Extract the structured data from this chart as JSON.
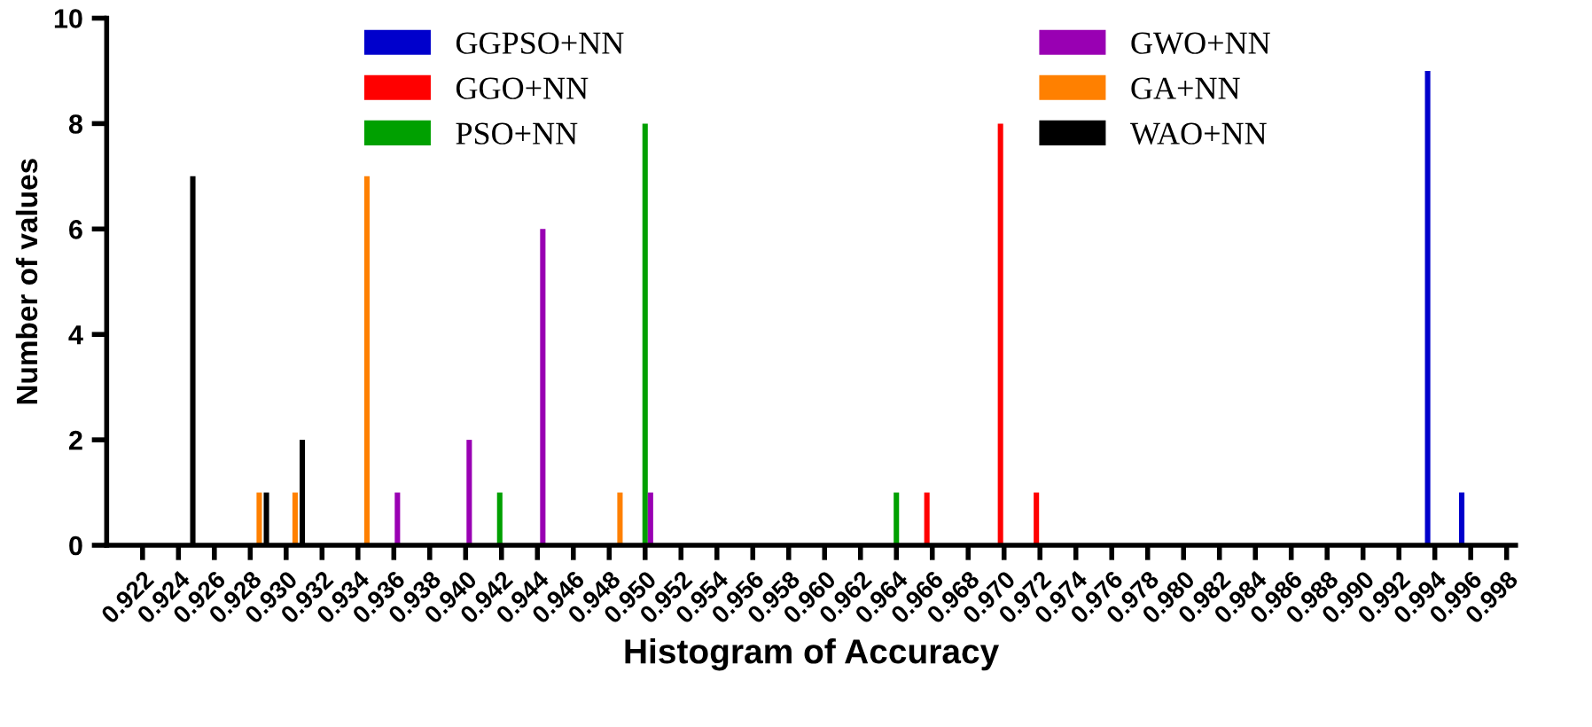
{
  "chart_data": {
    "type": "bar",
    "xlabel": "Histogram of Accuracy",
    "ylabel": "Number of values",
    "xlim": [
      0.92,
      0.9985
    ],
    "xticks": [
      {
        "value": 0.922,
        "label": "0.922"
      },
      {
        "value": 0.924,
        "label": "0.924"
      },
      {
        "value": 0.926,
        "label": "0.926"
      },
      {
        "value": 0.928,
        "label": "0.928"
      },
      {
        "value": 0.93,
        "label": "0.930"
      },
      {
        "value": 0.932,
        "label": "0.932"
      },
      {
        "value": 0.934,
        "label": "0.934"
      },
      {
        "value": 0.936,
        "label": "0.936"
      },
      {
        "value": 0.938,
        "label": "0.938"
      },
      {
        "value": 0.94,
        "label": "0.940"
      },
      {
        "value": 0.942,
        "label": "0.942"
      },
      {
        "value": 0.944,
        "label": "0.944"
      },
      {
        "value": 0.946,
        "label": "0.946"
      },
      {
        "value": 0.948,
        "label": "0.948"
      },
      {
        "value": 0.95,
        "label": "0.950"
      },
      {
        "value": 0.952,
        "label": "0.952"
      },
      {
        "value": 0.954,
        "label": "0.954"
      },
      {
        "value": 0.956,
        "label": "0.956"
      },
      {
        "value": 0.958,
        "label": "0.958"
      },
      {
        "value": 0.96,
        "label": "0.960"
      },
      {
        "value": 0.962,
        "label": "0.962"
      },
      {
        "value": 0.964,
        "label": "0.964"
      },
      {
        "value": 0.966,
        "label": "0.966"
      },
      {
        "value": 0.968,
        "label": "0.968"
      },
      {
        "value": 0.97,
        "label": "0.970"
      },
      {
        "value": 0.972,
        "label": "0.972"
      },
      {
        "value": 0.974,
        "label": "0.974"
      },
      {
        "value": 0.976,
        "label": "0.976"
      },
      {
        "value": 0.978,
        "label": "0.978"
      },
      {
        "value": 0.98,
        "label": "0.980"
      },
      {
        "value": 0.982,
        "label": "0.982"
      },
      {
        "value": 0.984,
        "label": "0.984"
      },
      {
        "value": 0.986,
        "label": "0.986"
      },
      {
        "value": 0.988,
        "label": "0.988"
      },
      {
        "value": 0.99,
        "label": "0.990"
      },
      {
        "value": 0.992,
        "label": "0.992"
      },
      {
        "value": 0.994,
        "label": "0.994"
      },
      {
        "value": 0.996,
        "label": "0.996"
      },
      {
        "value": 0.998,
        "label": "0.998"
      }
    ],
    "ylim": [
      0,
      10
    ],
    "yticks": [
      0,
      2,
      4,
      6,
      8,
      10
    ],
    "grid": false,
    "legend": "top",
    "series": [
      {
        "name": "GGPSO+NN",
        "color": "#0000cc",
        "x": [
          0.9936,
          0.9955
        ],
        "values": [
          9,
          1
        ]
      },
      {
        "name": "GGO+NN",
        "color": "#ff0000",
        "x": [
          0.9657,
          0.9698,
          0.9718
        ],
        "values": [
          1,
          8,
          1
        ]
      },
      {
        "name": "PSO+NN",
        "color": "#00a000",
        "x": [
          0.9419,
          0.95,
          0.964
        ],
        "values": [
          1,
          8,
          1
        ]
      },
      {
        "name": "GWO+NN",
        "color": "#9900b3",
        "x": [
          0.9362,
          0.9402,
          0.9443,
          0.9503
        ],
        "values": [
          1,
          2,
          6,
          1
        ]
      },
      {
        "name": "GA+NN",
        "color": "#ff8000",
        "x": [
          0.9285,
          0.9305,
          0.9345,
          0.9486
        ],
        "values": [
          1,
          1,
          7,
          1
        ]
      },
      {
        "name": "WAO+NN",
        "color": "#000000",
        "x": [
          0.9248,
          0.9289,
          0.9309
        ],
        "values": [
          7,
          1,
          2
        ]
      }
    ]
  }
}
